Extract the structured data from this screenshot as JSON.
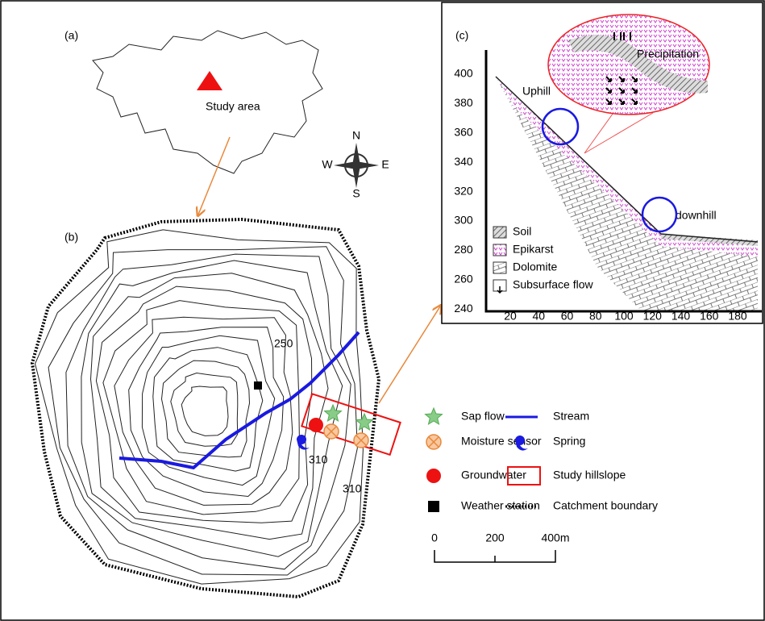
{
  "panel_a": {
    "label": "(a)",
    "site_label": "Study area"
  },
  "compass": {
    "n": "N",
    "s": "S",
    "e": "E",
    "w": "W"
  },
  "panel_b": {
    "label": "(b)",
    "contour_labels": [
      "250",
      "310",
      "310"
    ]
  },
  "panel_c": {
    "label": "(c)",
    "callout": "Precipitation",
    "uphill": "Uphill",
    "downhill": "downhill",
    "y_ticks": [
      400,
      380,
      360,
      340,
      320,
      300,
      280,
      260,
      240
    ],
    "x_ticks": [
      20,
      40,
      60,
      80,
      100,
      120,
      140,
      160,
      180
    ],
    "legend": [
      "Soil",
      "Epikarst",
      "Dolomite",
      "Subsurface flow"
    ]
  },
  "legend": [
    "Sap flow",
    "Moisture sensor",
    "Groundwater",
    "Weather station",
    "Stream",
    "Spring",
    "Study hillslope",
    "Catchment boundary"
  ],
  "scale_bar": [
    "0",
    "200",
    "400m"
  ]
}
